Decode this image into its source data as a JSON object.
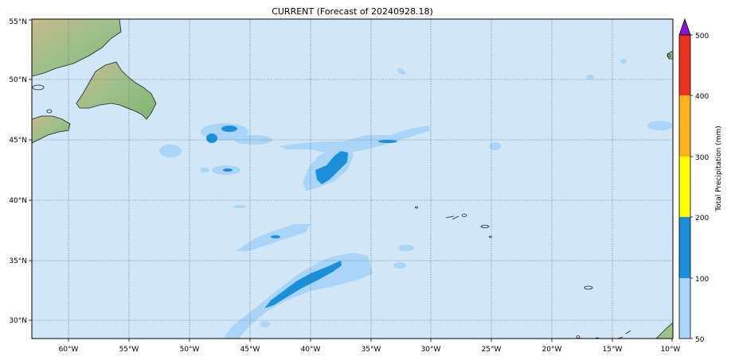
{
  "title": "CURRENT (Forecast of 20240928.18)",
  "map": {
    "lon_range": [
      -63,
      -10
    ],
    "lat_range": [
      28.5,
      55
    ],
    "lon_ticks": [
      "60°W",
      "55°W",
      "50°W",
      "45°W",
      "40°W",
      "35°W",
      "30°W",
      "25°W",
      "20°W",
      "15°W",
      "10°W"
    ],
    "lat_ticks": [
      "30°N",
      "35°N",
      "40°N",
      "45°N",
      "50°N",
      "55°N"
    ],
    "ocean_color": "#d1e7f7",
    "grid": "dotted"
  },
  "colorbar": {
    "label": "Total Precipitation (mm)",
    "ticks": [
      "50",
      "100",
      "200",
      "300",
      "400",
      "500"
    ],
    "colors": [
      "#aad4f8",
      "#1c8fdb",
      "#ffff00",
      "#ffb21f",
      "#ec3121",
      "#8b10d8"
    ],
    "extend": "max"
  }
}
